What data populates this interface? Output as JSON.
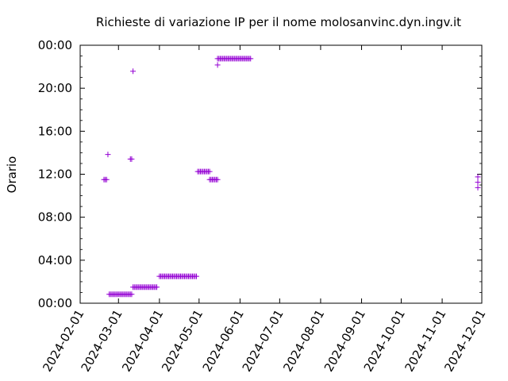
{
  "chart_data": {
    "type": "scatter",
    "title": "Richieste di variazione IP per il nome molosanvinc.dyn.ingv.it",
    "xlabel": "",
    "ylabel": "Orario",
    "marker": "+",
    "color": "#9400d3",
    "xlim": [
      "2024-02-01",
      "2024-12-01"
    ],
    "ylim": [
      "00:00",
      "24:00"
    ],
    "x_ticks": [
      "2024-02-01",
      "2024-03-01",
      "2024-04-01",
      "2024-05-01",
      "2024-06-01",
      "2024-07-01",
      "2024-08-01",
      "2024-09-01",
      "2024-10-01",
      "2024-11-01",
      "2024-12-01"
    ],
    "y_ticks": [
      "00:00",
      "04:00",
      "08:00",
      "12:00",
      "16:00",
      "20:00",
      "00:00"
    ],
    "grid": false,
    "legend": "none",
    "series": [
      {
        "points": [
          [
            "2024-02-19",
            "11:30"
          ],
          [
            "2024-02-20",
            "11:30"
          ],
          [
            "2024-02-21",
            "11:30"
          ],
          [
            "2024-02-22",
            "13:50"
          ],
          [
            "2024-02-23",
            "00:50"
          ],
          [
            "2024-02-24",
            "00:50"
          ],
          [
            "2024-02-25",
            "00:50"
          ],
          [
            "2024-02-26",
            "00:50"
          ],
          [
            "2024-02-27",
            "00:50"
          ],
          [
            "2024-02-28",
            "00:50"
          ],
          [
            "2024-02-29",
            "00:50"
          ],
          [
            "2024-03-01",
            "00:50"
          ],
          [
            "2024-03-02",
            "00:50"
          ],
          [
            "2024-03-03",
            "00:50"
          ],
          [
            "2024-03-04",
            "00:50"
          ],
          [
            "2024-03-05",
            "00:50"
          ],
          [
            "2024-03-06",
            "00:50"
          ],
          [
            "2024-03-07",
            "00:50"
          ],
          [
            "2024-03-08",
            "00:50"
          ],
          [
            "2024-03-09",
            "00:50"
          ],
          [
            "2024-03-10",
            "00:50"
          ],
          [
            "2024-03-11",
            "00:50"
          ],
          [
            "2024-03-10",
            "13:25"
          ],
          [
            "2024-03-11",
            "13:25"
          ],
          [
            "2024-03-12",
            "21:35"
          ],
          [
            "2024-03-12",
            "01:30"
          ],
          [
            "2024-03-13",
            "01:30"
          ],
          [
            "2024-03-14",
            "01:30"
          ],
          [
            "2024-03-15",
            "01:30"
          ],
          [
            "2024-03-16",
            "01:30"
          ],
          [
            "2024-03-17",
            "01:30"
          ],
          [
            "2024-03-18",
            "01:30"
          ],
          [
            "2024-03-19",
            "01:30"
          ],
          [
            "2024-03-20",
            "01:30"
          ],
          [
            "2024-03-21",
            "01:30"
          ],
          [
            "2024-03-22",
            "01:30"
          ],
          [
            "2024-03-23",
            "01:30"
          ],
          [
            "2024-03-24",
            "01:30"
          ],
          [
            "2024-03-25",
            "01:30"
          ],
          [
            "2024-03-26",
            "01:30"
          ],
          [
            "2024-03-27",
            "01:30"
          ],
          [
            "2024-03-28",
            "01:30"
          ],
          [
            "2024-03-29",
            "01:30"
          ],
          [
            "2024-03-30",
            "01:30"
          ],
          [
            "2024-04-01",
            "02:30"
          ],
          [
            "2024-04-02",
            "02:30"
          ],
          [
            "2024-04-03",
            "02:30"
          ],
          [
            "2024-04-04",
            "02:30"
          ],
          [
            "2024-04-05",
            "02:30"
          ],
          [
            "2024-04-06",
            "02:30"
          ],
          [
            "2024-04-07",
            "02:30"
          ],
          [
            "2024-04-08",
            "02:30"
          ],
          [
            "2024-04-09",
            "02:30"
          ],
          [
            "2024-04-10",
            "02:30"
          ],
          [
            "2024-04-11",
            "02:30"
          ],
          [
            "2024-04-12",
            "02:30"
          ],
          [
            "2024-04-13",
            "02:30"
          ],
          [
            "2024-04-14",
            "02:30"
          ],
          [
            "2024-04-15",
            "02:30"
          ],
          [
            "2024-04-16",
            "02:30"
          ],
          [
            "2024-04-17",
            "02:30"
          ],
          [
            "2024-04-18",
            "02:30"
          ],
          [
            "2024-04-19",
            "02:30"
          ],
          [
            "2024-04-20",
            "02:30"
          ],
          [
            "2024-04-21",
            "02:30"
          ],
          [
            "2024-04-22",
            "02:30"
          ],
          [
            "2024-04-23",
            "02:30"
          ],
          [
            "2024-04-24",
            "02:30"
          ],
          [
            "2024-04-25",
            "02:30"
          ],
          [
            "2024-04-26",
            "02:30"
          ],
          [
            "2024-04-27",
            "02:30"
          ],
          [
            "2024-04-28",
            "02:30"
          ],
          [
            "2024-04-29",
            "02:30"
          ],
          [
            "2024-04-30",
            "12:15"
          ],
          [
            "2024-05-01",
            "12:15"
          ],
          [
            "2024-05-02",
            "12:15"
          ],
          [
            "2024-05-03",
            "12:15"
          ],
          [
            "2024-05-04",
            "12:15"
          ],
          [
            "2024-05-05",
            "12:15"
          ],
          [
            "2024-05-06",
            "12:15"
          ],
          [
            "2024-05-07",
            "12:15"
          ],
          [
            "2024-05-08",
            "12:15"
          ],
          [
            "2024-05-09",
            "12:15"
          ],
          [
            "2024-05-09",
            "11:30"
          ],
          [
            "2024-05-10",
            "11:30"
          ],
          [
            "2024-05-11",
            "11:30"
          ],
          [
            "2024-05-12",
            "11:30"
          ],
          [
            "2024-05-13",
            "11:30"
          ],
          [
            "2024-05-14",
            "11:30"
          ],
          [
            "2024-05-15",
            "11:30"
          ],
          [
            "2024-05-15",
            "22:10"
          ],
          [
            "2024-05-15",
            "22:45"
          ],
          [
            "2024-05-16",
            "22:45"
          ],
          [
            "2024-05-17",
            "22:45"
          ],
          [
            "2024-05-18",
            "22:45"
          ],
          [
            "2024-05-19",
            "22:45"
          ],
          [
            "2024-05-20",
            "22:45"
          ],
          [
            "2024-05-21",
            "22:45"
          ],
          [
            "2024-05-22",
            "22:45"
          ],
          [
            "2024-05-23",
            "22:45"
          ],
          [
            "2024-05-24",
            "22:45"
          ],
          [
            "2024-05-25",
            "22:45"
          ],
          [
            "2024-05-26",
            "22:45"
          ],
          [
            "2024-05-27",
            "22:45"
          ],
          [
            "2024-05-28",
            "22:45"
          ],
          [
            "2024-05-29",
            "22:45"
          ],
          [
            "2024-05-30",
            "22:45"
          ],
          [
            "2024-05-31",
            "22:45"
          ],
          [
            "2024-06-01",
            "22:45"
          ],
          [
            "2024-06-02",
            "22:45"
          ],
          [
            "2024-06-03",
            "22:45"
          ],
          [
            "2024-06-04",
            "22:45"
          ],
          [
            "2024-06-05",
            "22:45"
          ],
          [
            "2024-06-06",
            "22:45"
          ],
          [
            "2024-06-07",
            "22:45"
          ],
          [
            "2024-06-08",
            "22:45"
          ],
          [
            "2024-06-09",
            "22:45"
          ],
          [
            "2024-11-28",
            "10:45"
          ],
          [
            "2024-11-28",
            "11:15"
          ],
          [
            "2024-11-28",
            "11:45"
          ]
        ]
      }
    ]
  }
}
